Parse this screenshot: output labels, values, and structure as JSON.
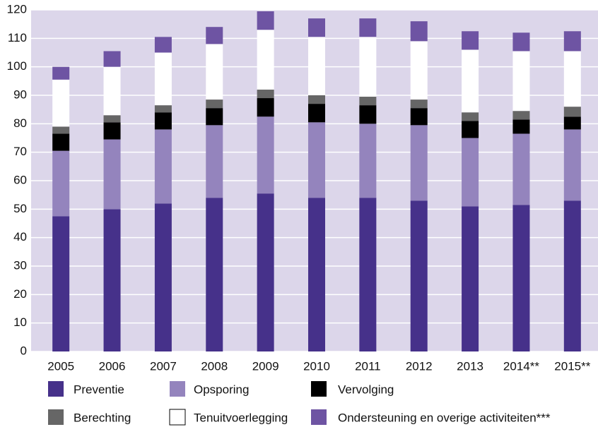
{
  "chart_data": {
    "type": "stacked-bar",
    "categories": [
      "2005",
      "2006",
      "2007",
      "2008",
      "2009",
      "2010",
      "2011",
      "2012",
      "2013",
      "2014**",
      "2015**"
    ],
    "series": [
      {
        "name": "Preventie",
        "color": "#46318a",
        "values": [
          47.5,
          50,
          52,
          54,
          55.5,
          54,
          54,
          53,
          51,
          51.5,
          53
        ]
      },
      {
        "name": "Opsporing",
        "color": "#9484bd",
        "values": [
          23,
          24.5,
          26,
          25.5,
          27,
          26.5,
          26,
          26.5,
          24,
          25,
          25
        ]
      },
      {
        "name": "Vervolging",
        "color": "#000000",
        "values": [
          6,
          6,
          6,
          6,
          6.5,
          6.5,
          6.5,
          6,
          6,
          5,
          4.5
        ]
      },
      {
        "name": "Berechting",
        "color": "#666666",
        "values": [
          2.5,
          2.5,
          2.5,
          3,
          3,
          3,
          3,
          3,
          3,
          3,
          3.5
        ]
      },
      {
        "name": "Tenuitvoerlegging",
        "color": "#ffffff",
        "values": [
          16.5,
          17,
          18.5,
          19.5,
          21,
          20.5,
          21,
          20.5,
          22,
          21,
          19.5
        ]
      },
      {
        "name": "Ondersteuning en overige activiteiten***",
        "color": "#6e54a3",
        "values": [
          4.5,
          5.5,
          5.5,
          6,
          6.5,
          6.5,
          6.5,
          7,
          6.5,
          6.5,
          7
        ]
      }
    ],
    "ylim": [
      0,
      120
    ],
    "yticks": [
      0,
      10,
      20,
      30,
      40,
      50,
      60,
      70,
      80,
      90,
      100,
      110,
      120
    ],
    "grid": true
  }
}
